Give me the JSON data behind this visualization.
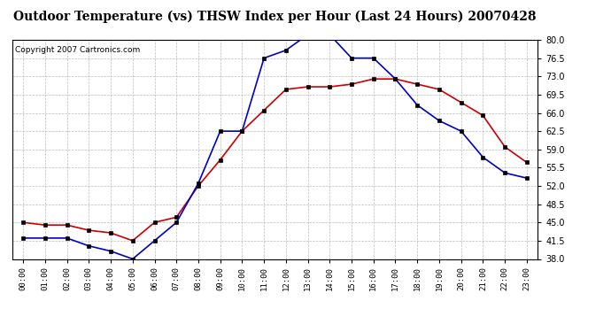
{
  "title": "Outdoor Temperature (vs) THSW Index per Hour (Last 24 Hours) 20070428",
  "copyright": "Copyright 2007 Cartronics.com",
  "hours": [
    "00:00",
    "01:00",
    "02:00",
    "03:00",
    "04:00",
    "05:00",
    "06:00",
    "07:00",
    "08:00",
    "09:00",
    "10:00",
    "11:00",
    "12:00",
    "13:00",
    "14:00",
    "15:00",
    "16:00",
    "17:00",
    "18:00",
    "19:00",
    "20:00",
    "21:00",
    "22:00",
    "23:00"
  ],
  "temp_red": [
    45.0,
    44.5,
    44.5,
    43.5,
    43.0,
    41.5,
    45.0,
    46.0,
    52.0,
    57.0,
    62.5,
    66.5,
    70.5,
    71.0,
    71.0,
    71.5,
    72.5,
    72.5,
    71.5,
    70.5,
    68.0,
    65.5,
    59.5,
    56.5
  ],
  "thsw_blue": [
    42.0,
    42.0,
    42.0,
    40.5,
    39.5,
    38.0,
    41.5,
    45.0,
    52.5,
    62.5,
    62.5,
    76.5,
    78.0,
    81.0,
    81.0,
    76.5,
    76.5,
    72.5,
    67.5,
    64.5,
    62.5,
    57.5,
    54.5,
    53.5
  ],
  "ylim": [
    38.0,
    80.0
  ],
  "yticks": [
    38.0,
    41.5,
    45.0,
    48.5,
    52.0,
    55.5,
    59.0,
    62.5,
    66.0,
    69.5,
    73.0,
    76.5,
    80.0
  ],
  "bg_color": "#ffffff",
  "plot_bg_color": "#ffffff",
  "grid_color": "#bbbbbb",
  "red_color": "#cc0000",
  "blue_color": "#0000cc",
  "title_fontsize": 10,
  "copyright_fontsize": 6.5
}
